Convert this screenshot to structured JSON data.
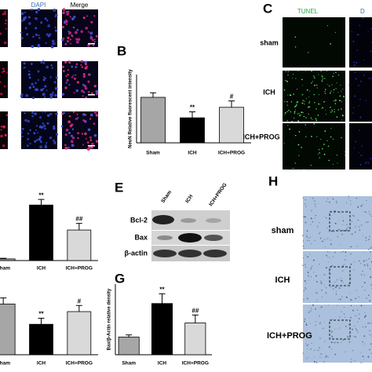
{
  "panel_a": {
    "columns": [
      "DAPI",
      "Merge"
    ]
  },
  "panel_letters": [
    "B",
    "C",
    "E",
    "G",
    "H"
  ],
  "panel_c": {
    "column": "TUNEL",
    "cut_header": "D",
    "rows": [
      "sham",
      "ICH",
      "ICH+PROG"
    ]
  },
  "panel_e": {
    "lanes": [
      "Sham",
      "ICH",
      "ICH+PROG"
    ],
    "rows": [
      "Bcl-2",
      "Bax",
      "β-actin"
    ]
  },
  "panel_h": {
    "rows": [
      "sham",
      "ICH",
      "ICH+PROG"
    ]
  },
  "chart_data": [
    {
      "type": "bar",
      "ylabel": "NeuN Relative fluorescent intensity",
      "categories": [
        "Sham",
        "ICH",
        "ICH+PROG"
      ],
      "values": [
        1.0,
        0.55,
        0.78
      ],
      "errors": [
        0.1,
        0.13,
        0.14
      ],
      "annotations": [
        null,
        "**",
        "#"
      ],
      "colors": [
        "#a6a6a6",
        "#000000",
        "#d9d9d9"
      ],
      "ylim": [
        0,
        1.5
      ]
    },
    {
      "type": "bar",
      "categories": [
        "Sham",
        "ICH",
        "ICH+PROG"
      ],
      "values": [
        0.03,
        1.0,
        0.55
      ],
      "errors": [
        0.01,
        0.1,
        0.12
      ],
      "annotations": [
        null,
        "**",
        "##"
      ],
      "colors": [
        "#a6a6a6",
        "#000000",
        "#d9d9d9"
      ],
      "ylim": [
        0,
        1.3
      ]
    },
    {
      "type": "bar",
      "categories": [
        "Sham",
        "ICH",
        "ICH+PROG"
      ],
      "values": [
        1.0,
        0.6,
        0.85
      ],
      "errors": [
        0.12,
        0.12,
        0.12
      ],
      "annotations": [
        null,
        "**",
        "#"
      ],
      "colors": [
        "#a6a6a6",
        "#000000",
        "#d9d9d9"
      ],
      "ylim": [
        0,
        1.5
      ]
    },
    {
      "type": "bar",
      "ylabel": "Bax/β-Actin relative density",
      "categories": [
        "Sham",
        "ICH",
        "ICH+PROG"
      ],
      "values": [
        1.0,
        2.9,
        1.8
      ],
      "errors": [
        0.12,
        0.55,
        0.45
      ],
      "annotations": [
        null,
        "**",
        "##"
      ],
      "colors": [
        "#a6a6a6",
        "#000000",
        "#d9d9d9"
      ],
      "ylim": [
        0,
        4
      ]
    }
  ]
}
